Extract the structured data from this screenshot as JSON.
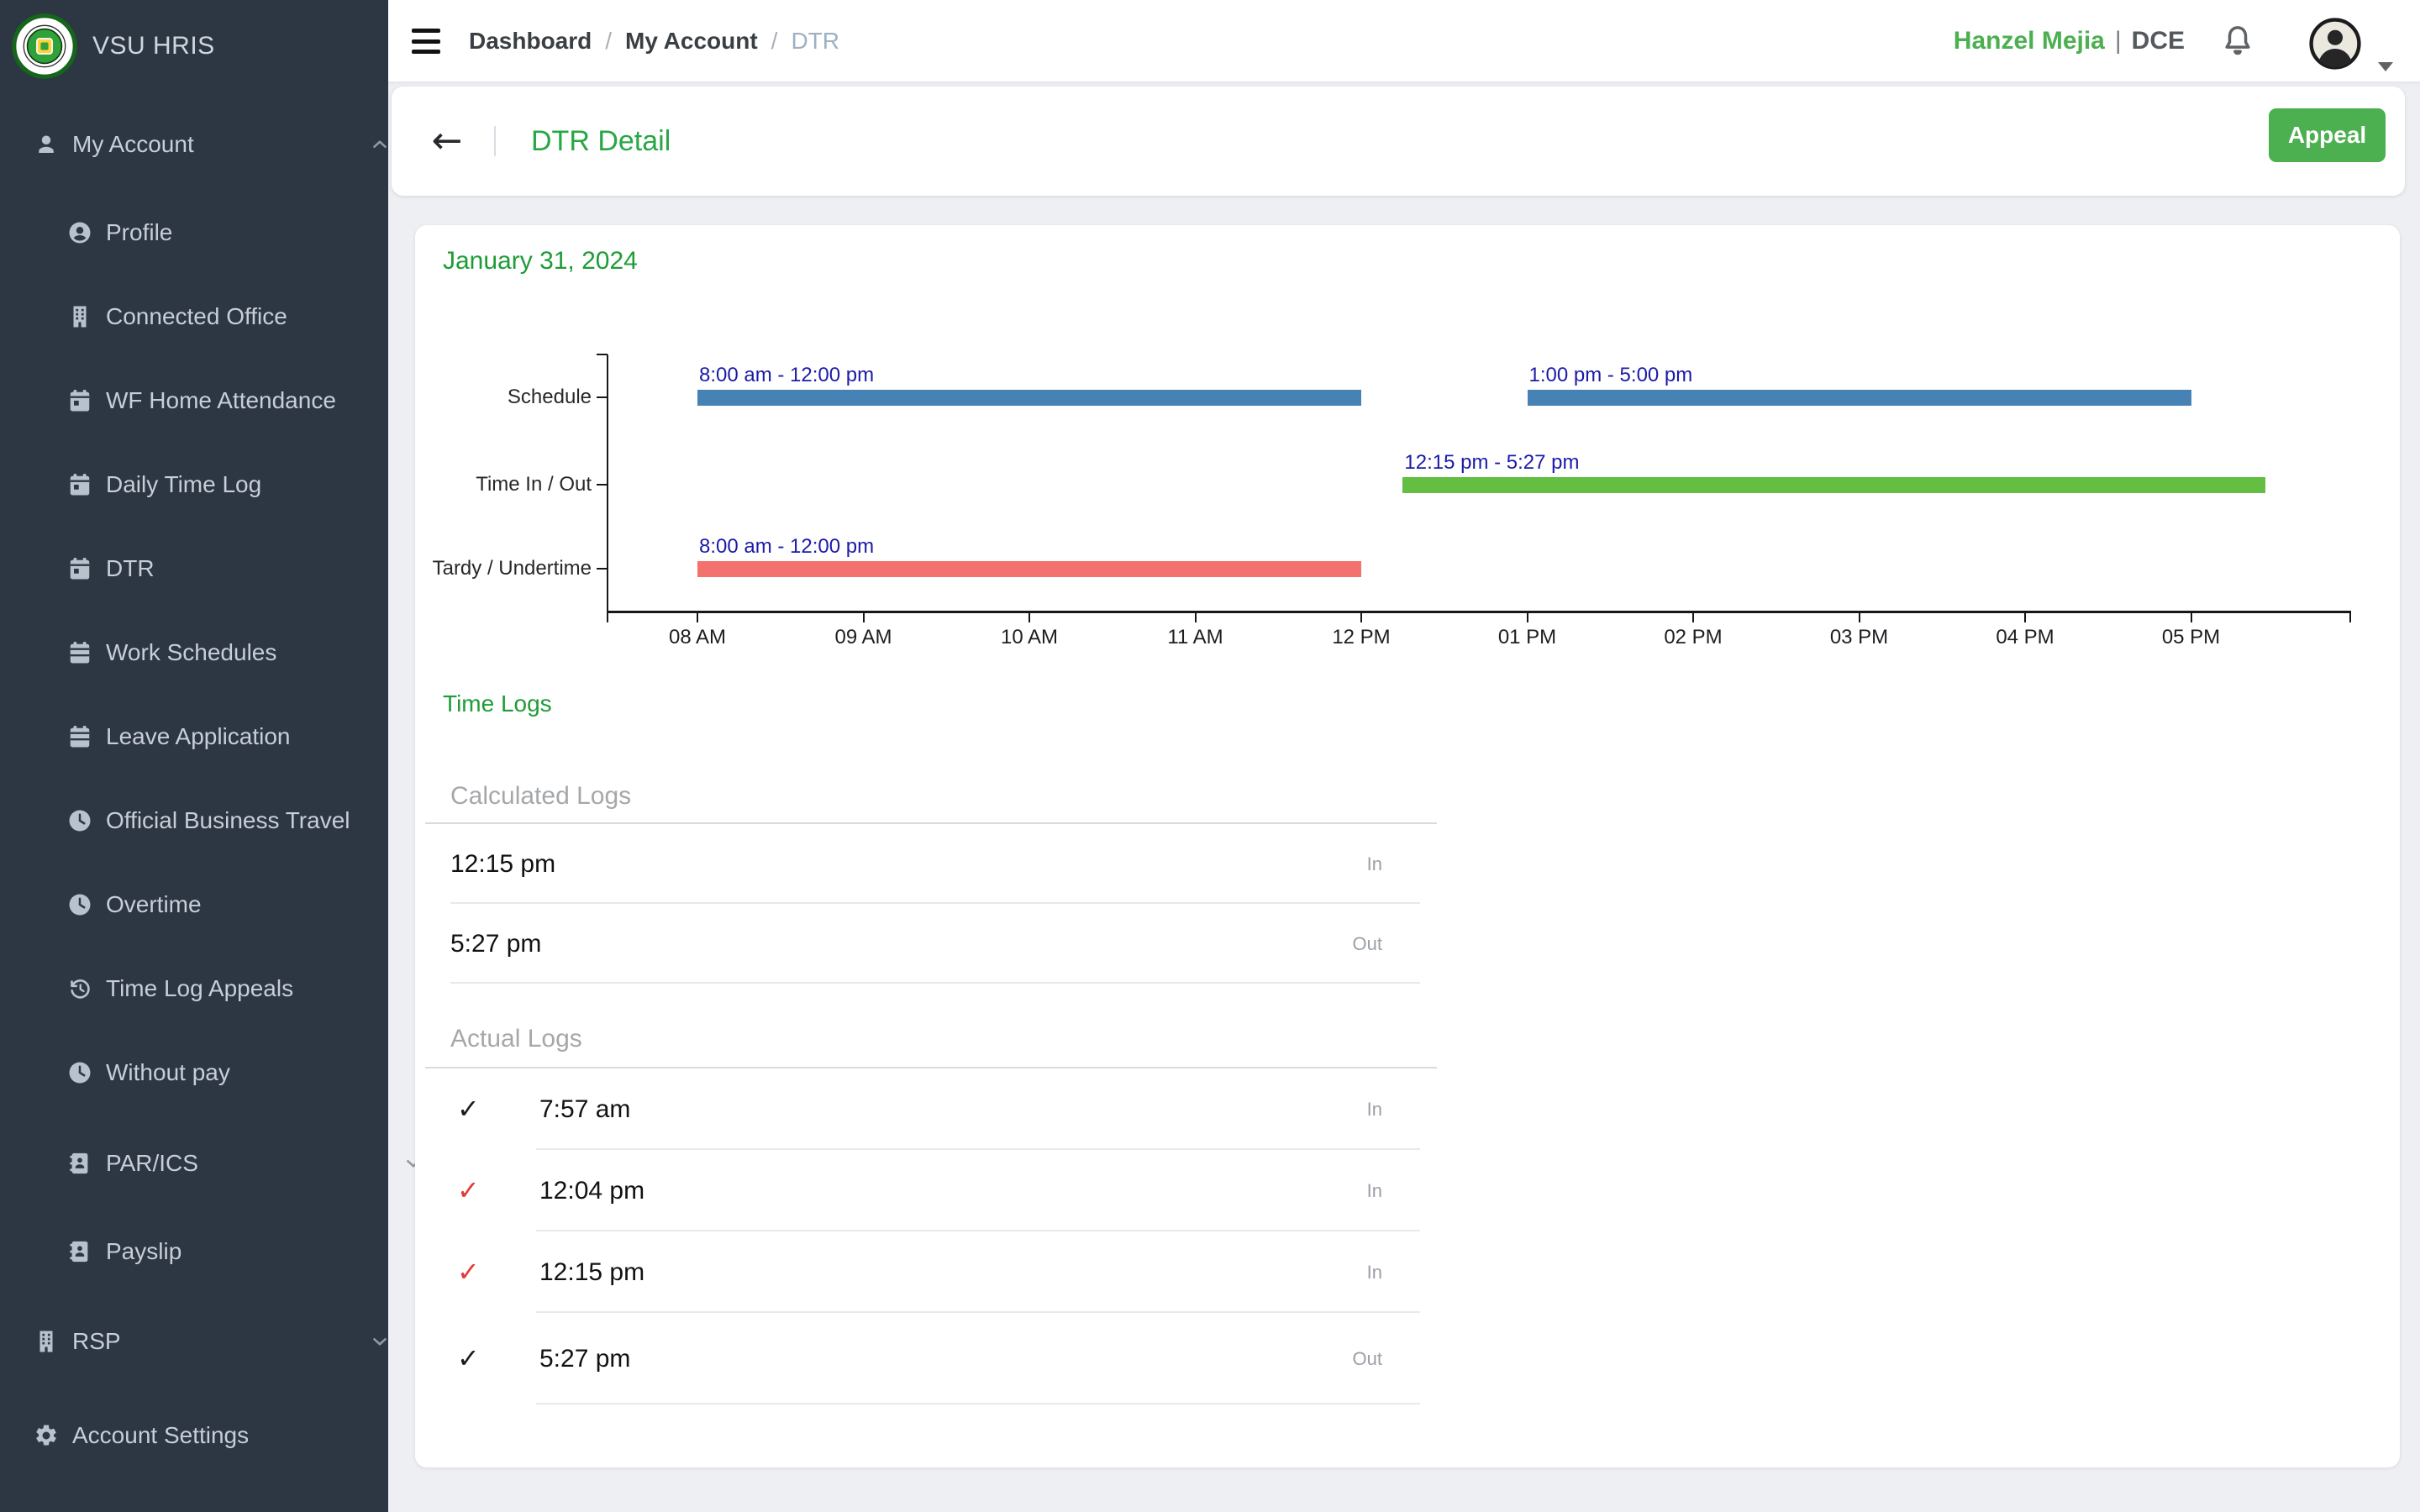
{
  "app": {
    "brand": "VSU HRIS"
  },
  "icons": {
    "back_arrow": "←",
    "check_glyph": "✓"
  },
  "colors": {
    "sidebar_bg": "#2d3643",
    "accent_green": "#1e9c36",
    "title_green": "#28a745",
    "button_green": "#4caf50",
    "check_ok": "#1c1c1c",
    "check_flag": "#e53935"
  },
  "sidebar": {
    "items": [
      {
        "label": "My Account",
        "icon": "user",
        "level": 0,
        "chevron": "up"
      },
      {
        "label": "Profile",
        "icon": "user-circle",
        "level": 1
      },
      {
        "label": "Connected Office",
        "icon": "building",
        "level": 1
      },
      {
        "label": "WF Home Attendance",
        "icon": "calendar-day",
        "level": 1
      },
      {
        "label": "Daily Time Log",
        "icon": "calendar-day",
        "level": 1
      },
      {
        "label": "DTR",
        "icon": "calendar-day",
        "level": 1
      },
      {
        "label": "Work Schedules",
        "icon": "calendar-lines",
        "level": 1
      },
      {
        "label": "Leave Application",
        "icon": "calendar-lines",
        "level": 1
      },
      {
        "label": "Official Business Travel",
        "icon": "clock",
        "level": 1
      },
      {
        "label": "Overtime",
        "icon": "clock",
        "level": 1
      },
      {
        "label": "Time Log Appeals",
        "icon": "history",
        "level": 1
      },
      {
        "label": "Without pay",
        "icon": "clock",
        "level": 1
      },
      {
        "label": "PAR/ICS",
        "icon": "id-card",
        "level": 1,
        "chevron": "down"
      },
      {
        "label": "Payslip",
        "icon": "id-card",
        "level": 1
      },
      {
        "label": "RSP",
        "icon": "building",
        "level": 0,
        "chevron": "down"
      },
      {
        "label": "Account Settings",
        "icon": "gear",
        "level": 0
      }
    ]
  },
  "topbar": {
    "breadcrumb": [
      {
        "type": "link",
        "label": "Dashboard"
      },
      {
        "type": "sep",
        "label": "/"
      },
      {
        "type": "link",
        "label": "My Account"
      },
      {
        "type": "sep",
        "label": "/"
      },
      {
        "type": "current",
        "label": "DTR"
      }
    ],
    "user_name": "Hanzel Mejia",
    "user_separator": "|",
    "user_role": "DCE"
  },
  "header": {
    "title": "DTR Detail",
    "appeal_label": "Appeal"
  },
  "chart_data": {
    "type": "bar",
    "subtype": "gantt-timeline",
    "title": "January 31, 2024",
    "rows": [
      "Schedule",
      "Time In / Out",
      "Tardy / Undertime"
    ],
    "x_domain": {
      "start": "07:28",
      "end": "17:58"
    },
    "x_ticks": [
      {
        "t": "08:00",
        "label": "08 AM"
      },
      {
        "t": "09:00",
        "label": "09 AM"
      },
      {
        "t": "10:00",
        "label": "10 AM"
      },
      {
        "t": "11:00",
        "label": "11 AM"
      },
      {
        "t": "12:00",
        "label": "12 PM"
      },
      {
        "t": "13:00",
        "label": "01 PM"
      },
      {
        "t": "14:00",
        "label": "02 PM"
      },
      {
        "t": "15:00",
        "label": "03 PM"
      },
      {
        "t": "16:00",
        "label": "04 PM"
      },
      {
        "t": "17:00",
        "label": "05 PM"
      }
    ],
    "bars": [
      {
        "row": "Schedule",
        "start": "08:00",
        "end": "12:00",
        "label": "8:00 am - 12:00 pm",
        "color_key": "schedule"
      },
      {
        "row": "Schedule",
        "start": "13:00",
        "end": "17:00",
        "label": "1:00 pm - 5:00 pm",
        "color_key": "schedule"
      },
      {
        "row": "Time In / Out",
        "start": "12:15",
        "end": "17:27",
        "label": "12:15 pm - 5:27 pm",
        "color_key": "actual"
      },
      {
        "row": "Tardy / Undertime",
        "start": "08:00",
        "end": "12:00",
        "label": "8:00 am - 12:00 pm",
        "color_key": "tardy"
      }
    ],
    "colors": {
      "schedule": "#4682B4",
      "actual": "#63BE41",
      "tardy": "#F4726E",
      "bar_label": "#1B1BA8"
    },
    "legend": "none",
    "grid": "off"
  },
  "time_logs": {
    "title": "Time Logs",
    "sections": [
      {
        "title": "Calculated Logs",
        "rows": [
          {
            "time": "12:15 pm",
            "direction": "In"
          },
          {
            "time": "5:27 pm",
            "direction": "Out"
          }
        ]
      },
      {
        "title": "Actual Logs",
        "rows": [
          {
            "check": "ok",
            "time": "7:57 am",
            "direction": "In"
          },
          {
            "check": "flag",
            "time": "12:04 pm",
            "direction": "In"
          },
          {
            "check": "flag",
            "time": "12:15 pm",
            "direction": "In"
          },
          {
            "check": "ok",
            "time": "5:27 pm",
            "direction": "Out"
          }
        ]
      }
    ]
  }
}
